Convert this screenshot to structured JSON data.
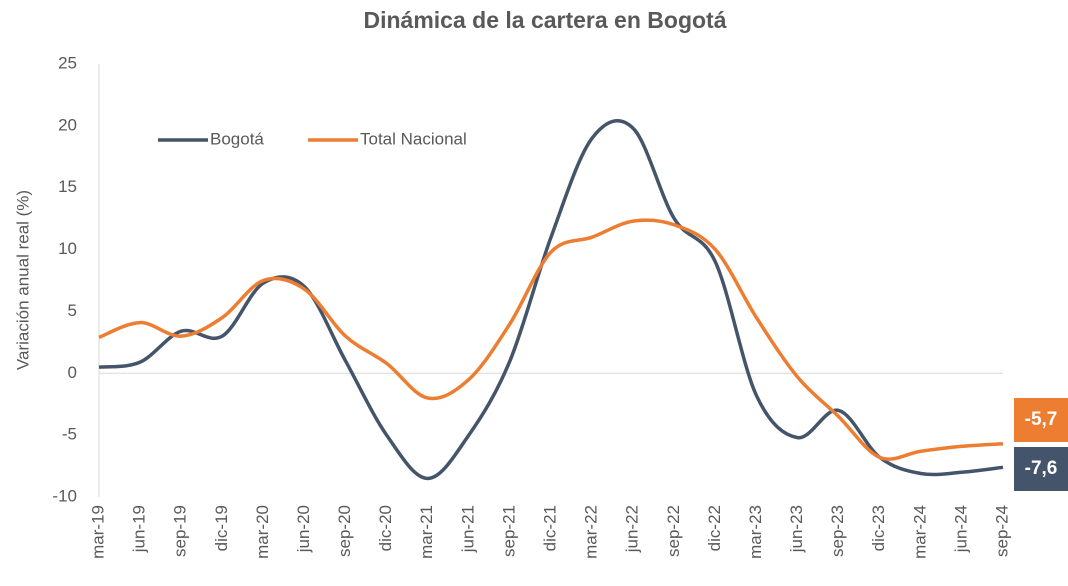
{
  "chart_data": {
    "type": "line",
    "title": "Dinámica de la cartera en Bogotá",
    "y_label": "Variación anual real (%)",
    "categories": [
      "mar-19",
      "jun-19",
      "sep-19",
      "dic-19",
      "mar-20",
      "jun-20",
      "sep-20",
      "dic-20",
      "mar-21",
      "jun-21",
      "sep-21",
      "dic-21",
      "mar-22",
      "jun-22",
      "sep-22",
      "dic-22",
      "mar-23",
      "jun-23",
      "sep-23",
      "dic-23",
      "mar-24",
      "jun-24",
      "sep-24"
    ],
    "series": [
      {
        "name": "Bogotá",
        "color": "#44546a",
        "values": [
          0.5,
          0.9,
          3.4,
          3.0,
          7.3,
          7.0,
          1.0,
          -5.0,
          -8.5,
          -5.0,
          1.0,
          11.0,
          19.0,
          19.8,
          12.5,
          9.0,
          -1.8,
          -5.2,
          -3.0,
          -6.8,
          -8.1,
          -8.0,
          -7.6
        ],
        "value_labels": [
          null,
          null,
          null,
          null,
          null,
          null,
          null,
          null,
          null,
          null,
          null,
          null,
          null,
          null,
          null,
          null,
          null,
          null,
          null,
          null,
          null,
          null,
          "-7,6"
        ]
      },
      {
        "name": "Total Nacional",
        "color": "#ed7d31",
        "values": [
          2.9,
          4.1,
          3.0,
          4.5,
          7.5,
          6.8,
          3.0,
          0.8,
          -2.0,
          -0.5,
          4.0,
          9.8,
          11.0,
          12.3,
          12.0,
          10.0,
          4.5,
          -0.3,
          -3.5,
          -6.8,
          -6.3,
          -5.9,
          -5.7
        ],
        "value_labels": [
          null,
          null,
          null,
          null,
          null,
          null,
          null,
          null,
          null,
          null,
          null,
          null,
          null,
          null,
          null,
          null,
          null,
          null,
          null,
          null,
          null,
          null,
          "-5,7"
        ]
      }
    ],
    "ylim": [
      -10,
      25
    ],
    "yticks": [
      -10,
      -5,
      0,
      5,
      10,
      15,
      20,
      25
    ],
    "grid": false,
    "legend": "upper left"
  }
}
